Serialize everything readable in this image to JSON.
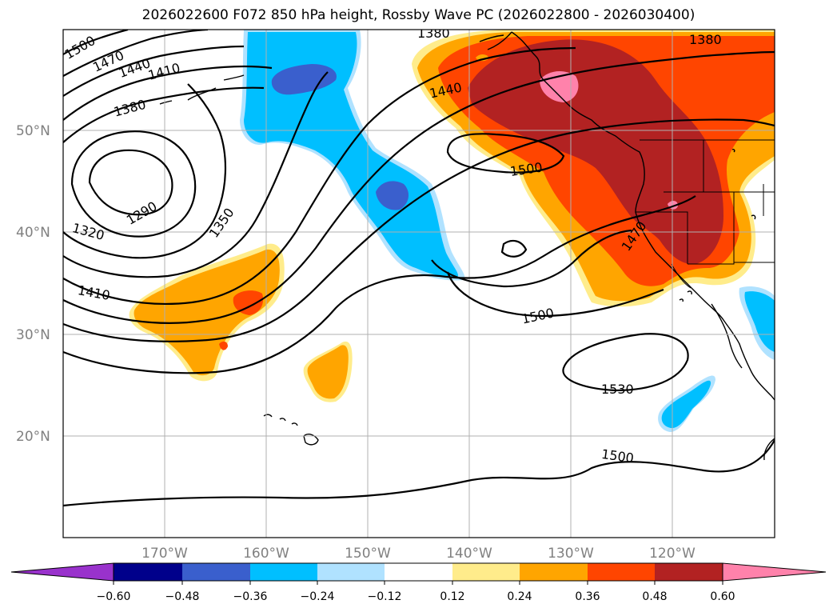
{
  "title": "2026022600 F072 850 hPa height, Rossby Wave PC (2026022800 - 2026030400)",
  "lat_labels": [
    "50°N",
    "40°N",
    "30°N",
    "20°N"
  ],
  "lon_labels": [
    "170°W",
    "160°W",
    "150°W",
    "140°W",
    "130°W",
    "120°W"
  ],
  "colorbar": {
    "ticks": [
      "−0.60",
      "−0.48",
      "−0.36",
      "−0.24",
      "−0.12",
      "0.12",
      "0.24",
      "0.36",
      "0.48",
      "0.60"
    ],
    "colors": [
      "#9932cc",
      "#00008b",
      "#3a5fcd",
      "#00bfff",
      "#b0e2ff",
      "#ffffff",
      "#ffec8b",
      "#ffa500",
      "#ff4500",
      "#b22222",
      "#ff82ab"
    ]
  },
  "contour_labels": [
    {
      "text": "1500"
    },
    {
      "text": "1470"
    },
    {
      "text": "1440"
    },
    {
      "text": "1410"
    },
    {
      "text": "1380"
    },
    {
      "text": "1290"
    },
    {
      "text": "1320"
    },
    {
      "text": "1350"
    },
    {
      "text": "1410"
    },
    {
      "text": "1380"
    },
    {
      "text": "1380"
    },
    {
      "text": "1440"
    },
    {
      "text": "1500"
    },
    {
      "text": "1470"
    },
    {
      "text": "1500"
    },
    {
      "text": "1530"
    },
    {
      "text": "1500"
    }
  ]
}
